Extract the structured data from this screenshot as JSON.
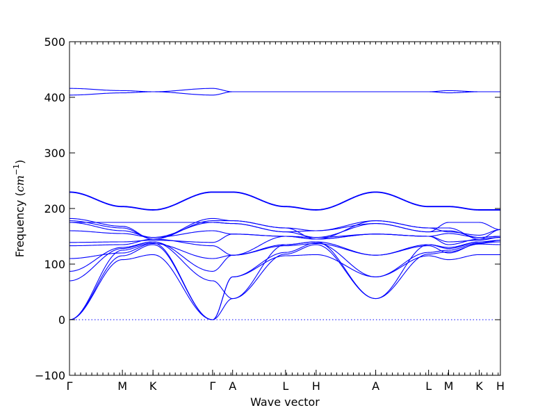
{
  "chart_data": {
    "type": "line",
    "title": "",
    "xlabel": "Wave vector",
    "ylabel": "Frequency (cm⁻¹)",
    "ylabel_text": "Frequency (",
    "ylabel_unit": "cm",
    "ylabel_exp": "−1",
    "ylabel_close": ")",
    "ylim": [
      -100,
      500
    ],
    "yticks": [
      -100,
      0,
      100,
      200,
      300,
      400,
      500
    ],
    "xlim": [
      0,
      7.74
    ],
    "grid": false,
    "legend": "none",
    "line_color": "#0000ff",
    "hline": {
      "y": 0,
      "style": "dotted"
    },
    "path": [
      {
        "label": "Γ",
        "x": 0
      },
      {
        "label": "M",
        "x": 0.95
      },
      {
        "label": "K",
        "x": 1.5
      },
      {
        "label": "Γ",
        "x": 2.57
      },
      {
        "label": "A",
        "x": 2.93
      },
      {
        "label": "L",
        "x": 3.88
      },
      {
        "label": "H",
        "x": 4.43
      },
      {
        "label": "A",
        "x": 5.5
      },
      {
        "label": "L",
        "x": 6.45
      },
      {
        "label": "M",
        "x": 6.81
      },
      {
        "label": "K",
        "x": 7.36
      },
      {
        "label": "H",
        "x": 7.74
      }
    ],
    "series": [
      {
        "x": [
          0,
          0.95,
          1.5,
          2.57,
          2.93,
          3.88,
          4.43,
          5.5,
          6.45,
          6.81,
          7.36,
          7.74
        ],
        "values": [
          0,
          115,
          135,
          0,
          38,
          118,
          135,
          38,
          118,
          122,
          136,
          135
        ]
      },
      {
        "x": [
          0,
          0.95,
          1.5,
          2.57,
          2.93,
          3.88,
          4.43,
          5.5,
          6.45,
          6.81,
          7.36,
          7.74
        ],
        "values": [
          0,
          108,
          117,
          0,
          77,
          115,
          117,
          77,
          115,
          108,
          117,
          117
        ]
      },
      {
        "x": [
          0,
          0.95,
          1.5,
          2.57,
          2.93,
          3.88,
          4.43,
          5.5,
          6.45,
          6.81,
          7.36,
          7.74
        ],
        "values": [
          0,
          125,
          138,
          0,
          77,
          121,
          138,
          77,
          121,
          125,
          138,
          140
        ]
      },
      {
        "x": [
          0,
          0.95,
          1.5,
          2.57,
          2.93,
          3.88,
          4.43,
          5.5,
          6.45,
          6.81,
          7.36,
          7.74
        ],
        "values": [
          70,
          128,
          140,
          70,
          38,
          135,
          140,
          38,
          135,
          128,
          140,
          140
        ]
      },
      {
        "x": [
          0,
          0.95,
          1.5,
          2.57,
          2.93,
          3.88,
          4.43,
          5.5,
          6.45,
          6.81,
          7.36,
          7.74
        ],
        "values": [
          87,
          130,
          140,
          87,
          116,
          135,
          140,
          116,
          135,
          130,
          140,
          143
        ]
      },
      {
        "x": [
          0,
          0.95,
          1.5,
          2.57,
          2.93,
          3.88,
          4.43,
          5.5,
          6.45,
          6.81,
          7.36,
          7.74
        ],
        "values": [
          110,
          120,
          137,
          110,
          116,
          133,
          137,
          116,
          133,
          120,
          137,
          143
        ]
      },
      {
        "x": [
          0,
          0.95,
          1.5,
          2.57,
          2.93,
          3.88,
          4.43,
          5.5,
          6.45,
          6.81,
          7.36,
          7.74
        ],
        "values": [
          133,
          135,
          145,
          133,
          116,
          150,
          145,
          154,
          150,
          135,
          145,
          148
        ]
      },
      {
        "x": [
          0,
          0.95,
          1.5,
          2.57,
          2.93,
          3.88,
          4.43,
          5.5,
          6.45,
          6.81,
          7.36,
          7.74
        ],
        "values": [
          139,
          140,
          143,
          139,
          154,
          150,
          145,
          154,
          150,
          140,
          143,
          148
        ]
      },
      {
        "x": [
          0,
          0.95,
          1.5,
          2.57,
          2.93,
          3.88,
          4.43,
          5.5,
          6.45,
          6.81,
          7.36,
          7.74
        ],
        "values": [
          160,
          155,
          148,
          160,
          154,
          150,
          148,
          154,
          150,
          155,
          148,
          150
        ]
      },
      {
        "x": [
          0,
          0.95,
          1.5,
          2.57,
          2.93,
          3.88,
          4.43,
          5.5,
          6.45,
          6.81,
          7.36,
          7.74
        ],
        "values": [
          175,
          160,
          148,
          175,
          173,
          158,
          148,
          173,
          158,
          160,
          148,
          150
        ]
      },
      {
        "x": [
          0,
          0.95,
          1.5,
          2.57,
          2.93,
          3.88,
          4.43,
          5.5,
          6.45,
          6.81,
          7.36,
          7.74
        ],
        "values": [
          175,
          175,
          175,
          175,
          173,
          158,
          160,
          173,
          158,
          175,
          175,
          162
        ]
      },
      {
        "x": [
          0,
          0.95,
          1.5,
          2.57,
          2.93,
          3.88,
          4.43,
          5.5,
          6.45,
          6.81,
          7.36,
          7.74
        ],
        "values": [
          178,
          165,
          145,
          178,
          178,
          165,
          160,
          178,
          165,
          165,
          145,
          162
        ]
      },
      {
        "x": [
          0,
          0.95,
          1.5,
          2.57,
          2.93,
          3.88,
          4.43,
          5.5,
          6.45,
          6.81,
          7.36,
          7.74
        ],
        "values": [
          182,
          168,
          145,
          182,
          178,
          165,
          145,
          178,
          165,
          158,
          152,
          162
        ]
      },
      {
        "x": [
          0,
          0.95,
          1.5,
          2.57,
          2.93,
          3.88,
          4.43,
          5.5,
          6.45,
          6.81,
          7.36,
          7.74
        ],
        "values": [
          229,
          203,
          197,
          229,
          229,
          203,
          197,
          229,
          203,
          203,
          197,
          197
        ]
      },
      {
        "x": [
          0,
          0.95,
          1.5,
          2.57,
          2.93,
          3.88,
          4.43,
          5.5,
          6.45,
          6.81,
          7.36,
          7.74
        ],
        "values": [
          230,
          204,
          198,
          230,
          230,
          204,
          198,
          230,
          204,
          204,
          198,
          198
        ]
      },
      {
        "x": [
          0,
          0.95,
          1.5,
          2.57,
          2.93,
          3.88,
          4.43,
          5.5,
          6.45,
          6.81,
          7.36,
          7.74
        ],
        "values": [
          404,
          408,
          410,
          404,
          410,
          410,
          410,
          410,
          410,
          408,
          410,
          410
        ]
      },
      {
        "x": [
          0,
          0.95,
          1.5,
          2.57,
          2.93,
          3.88,
          4.43,
          5.5,
          6.45,
          6.81,
          7.36,
          7.74
        ],
        "values": [
          416,
          412,
          410,
          416,
          410,
          410,
          410,
          410,
          410,
          412,
          410,
          410
        ]
      }
    ]
  }
}
